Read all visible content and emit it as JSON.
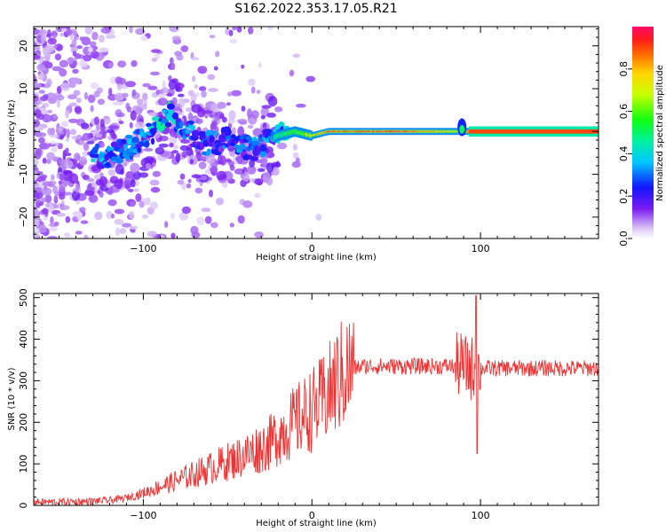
{
  "title": "S162.2022.353.17.05.R21",
  "chart_data": [
    {
      "type": "heatmap",
      "name": "spectrogram",
      "xlabel": "Height of straight line (km)",
      "ylabel": "Frequency (Hz)",
      "xlim": [
        -165,
        170
      ],
      "ylim": [
        -25,
        24.5
      ],
      "xticks": [
        -100,
        0,
        100
      ],
      "yticks": [
        -20,
        -10,
        0,
        10,
        20
      ],
      "colorbar": {
        "label": "Normalized spectral amplitude",
        "range": [
          0,
          1
        ],
        "ticks": [
          0.0,
          0.2,
          0.4,
          0.6,
          0.8
        ],
        "colormap": "white-purple-blue-cyan-green-yellow-orange-red-pink"
      },
      "ridge": [
        {
          "x": -125,
          "y": -6,
          "amp": 0.35
        },
        {
          "x": -115,
          "y": -5,
          "amp": 0.3
        },
        {
          "x": -105,
          "y": -3,
          "amp": 0.35
        },
        {
          "x": -95,
          "y": 0,
          "amp": 0.4
        },
        {
          "x": -85,
          "y": 4,
          "amp": 0.45
        },
        {
          "x": -75,
          "y": 1,
          "amp": 0.35
        },
        {
          "x": -65,
          "y": -3,
          "amp": 0.3
        },
        {
          "x": -50,
          "y": -2,
          "amp": 0.3
        },
        {
          "x": -35,
          "y": -4,
          "amp": 0.3
        },
        {
          "x": -20,
          "y": -1,
          "amp": 0.4
        },
        {
          "x": -10,
          "y": 0,
          "amp": 0.55
        },
        {
          "x": 0,
          "y": -1,
          "amp": 0.7
        },
        {
          "x": 10,
          "y": 0,
          "amp": 0.85
        },
        {
          "x": 50,
          "y": 0,
          "amp": 0.9
        },
        {
          "x": 88,
          "y": 0,
          "amp": 0.7
        },
        {
          "x": 95,
          "y": 0,
          "amp": 0.95
        },
        {
          "x": 170,
          "y": 0,
          "amp": 0.95
        }
      ]
    },
    {
      "type": "line",
      "name": "snr",
      "xlabel": "Height of straight line (km)",
      "ylabel": "SNR (10 * v/v)",
      "xlim": [
        -165,
        170
      ],
      "ylim": [
        0,
        510
      ],
      "xticks": [
        -100,
        0,
        100
      ],
      "yticks": [
        0,
        100,
        200,
        300,
        400,
        500
      ],
      "color": "#ee3333",
      "series": [
        {
          "name": "SNR",
          "x": [
            -165,
            -150,
            -140,
            -130,
            -120,
            -110,
            -100,
            -90,
            -80,
            -70,
            -60,
            -50,
            -40,
            -30,
            -25,
            -20,
            -15,
            -10,
            -5,
            0,
            5,
            10,
            15,
            20,
            25,
            30,
            40,
            50,
            60,
            70,
            80,
            85,
            88,
            90,
            92,
            95,
            97,
            98,
            100,
            105,
            110,
            120,
            130,
            140,
            150,
            160,
            170
          ],
          "values": [
            8,
            8,
            9,
            10,
            12,
            18,
            30,
            45,
            60,
            75,
            90,
            105,
            120,
            140,
            150,
            170,
            185,
            200,
            215,
            230,
            245,
            270,
            300,
            320,
            330,
            335,
            335,
            335,
            335,
            335,
            335,
            335,
            340,
            335,
            330,
            330,
            330,
            330,
            330,
            330,
            330,
            330,
            330,
            330,
            330,
            330,
            330
          ]
        }
      ]
    }
  ]
}
